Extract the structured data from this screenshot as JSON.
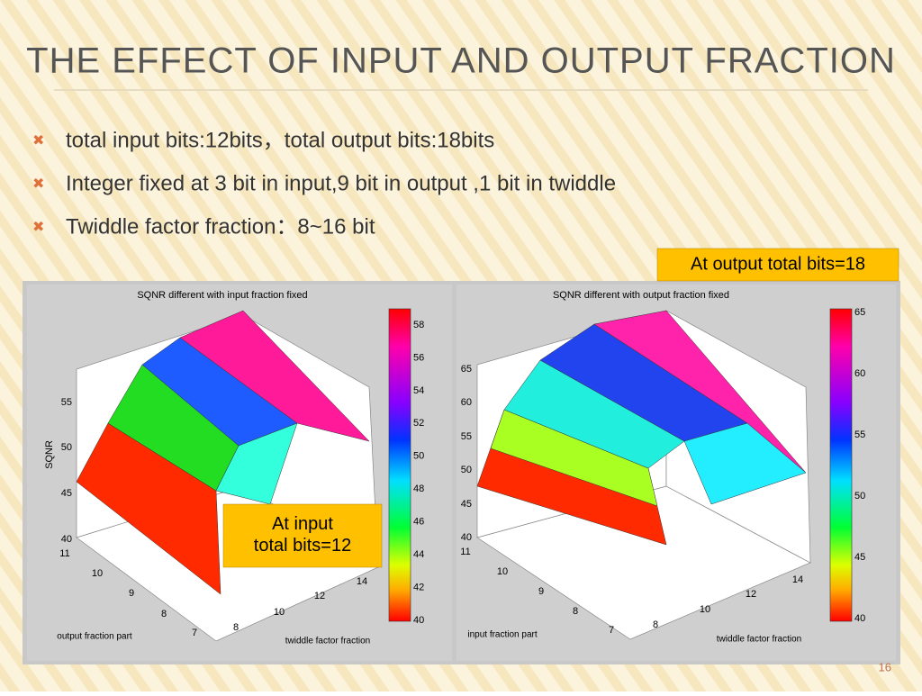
{
  "title": "THE EFFECT OF INPUT AND OUTPUT FRACTION",
  "bullets": [
    "total input bits:12bits，total output bits:18bits",
    "Integer fixed at 3 bit in input,9 bit in output ,1 bit in twiddle",
    "Twiddle factor fraction：8~16 bit"
  ],
  "callouts": {
    "output": "At output total bits=18",
    "input": "At input total bits=12"
  },
  "figures": [
    {
      "title": "SQNR different with input fraction fixed",
      "zlabel": "SQNR",
      "xlabel": "output fraction part",
      "ylabel": "twiddle factor fraction",
      "zticks": [
        55,
        50,
        45,
        40
      ],
      "xticks": [
        11,
        10,
        9,
        8,
        7
      ],
      "yticks": [
        8,
        10,
        12,
        14
      ],
      "colorbar": [
        58,
        56,
        54,
        52,
        50,
        48,
        46,
        44,
        42,
        40
      ]
    },
    {
      "title": "SQNR different with output fraction fixed",
      "xlabel": "input fraction part",
      "ylabel": "twiddle factor fraction",
      "zticks": [
        65,
        60,
        55,
        50,
        45,
        40
      ],
      "xticks": [
        11,
        10,
        9,
        8,
        7
      ],
      "yticks": [
        8,
        10,
        12,
        14
      ],
      "colorbar": [
        65,
        60,
        55,
        50,
        45,
        40
      ]
    }
  ],
  "page_number": "16"
}
